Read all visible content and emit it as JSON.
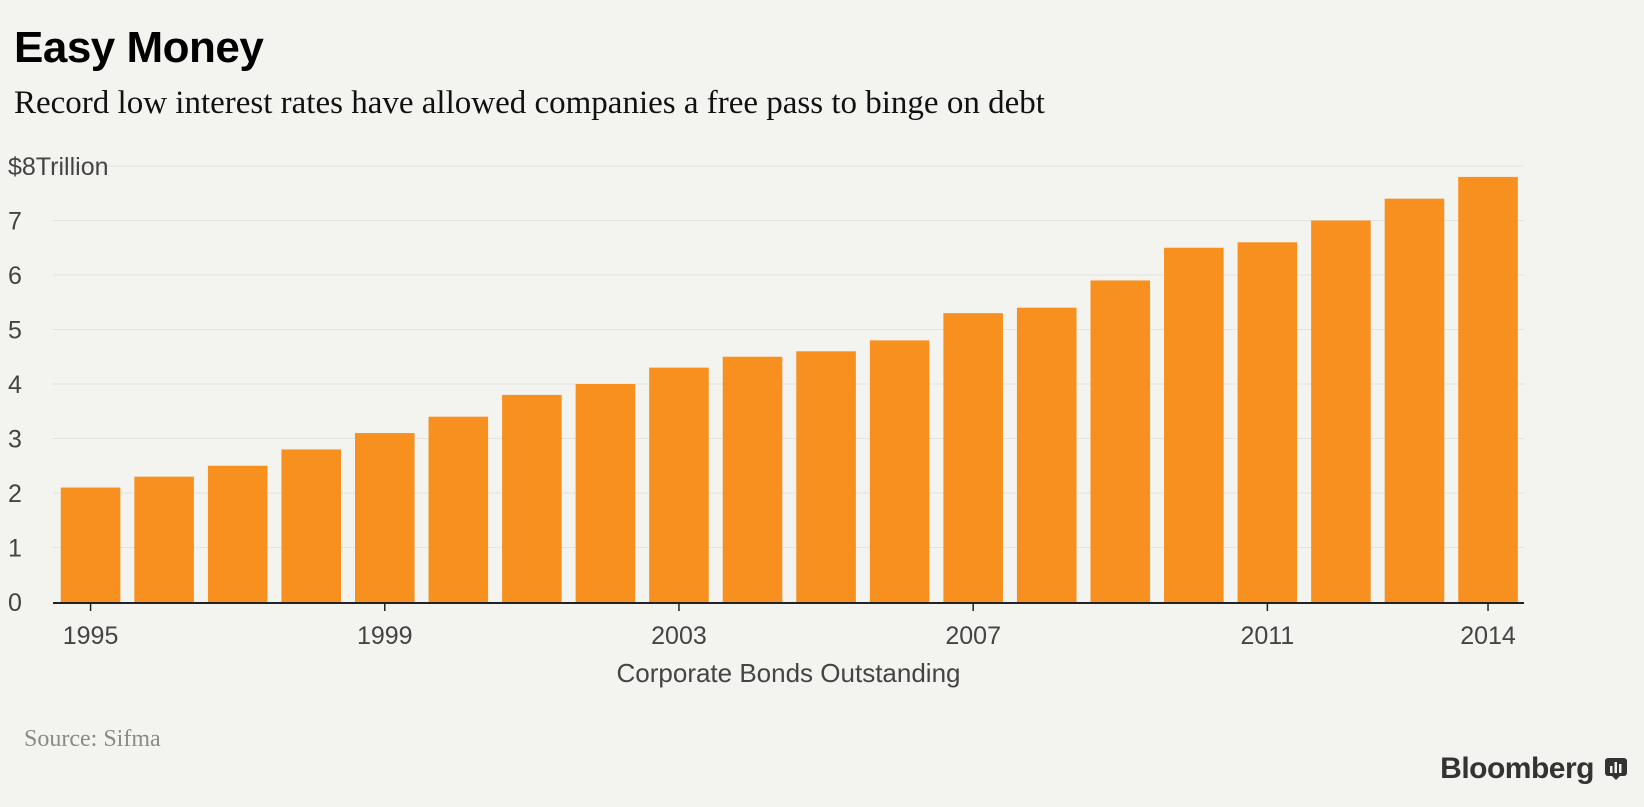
{
  "title": "Easy Money",
  "subtitle": "Record low interest rates have allowed companies a free pass to binge on debt",
  "source": "Source: Sifma",
  "brand": "Bloomberg",
  "colors": {
    "bar": "#f7901e",
    "grid": "#e2e2de",
    "axis": "#222222",
    "tick_text": "#444444",
    "background": "#f3f3ef"
  },
  "chart_data": {
    "type": "bar",
    "title": "Easy Money",
    "xlabel": "Corporate Bonds Outstanding",
    "ylabel": "",
    "y_unit_label": "$8Trillion",
    "ylim": [
      0,
      8
    ],
    "yticks": [
      0,
      1,
      2,
      3,
      4,
      5,
      6,
      7,
      8
    ],
    "ytick_labels": [
      "0",
      "1",
      "2",
      "3",
      "4",
      "5",
      "6",
      "7",
      "$8Trillion"
    ],
    "grid": true,
    "categories": [
      "1995",
      "1996",
      "1997",
      "1998",
      "1999",
      "2000",
      "2001",
      "2002",
      "2003",
      "2004",
      "2005",
      "2006",
      "2007",
      "2008",
      "2009",
      "2010",
      "2011",
      "2012",
      "2013",
      "2014"
    ],
    "xtick_labels": [
      "1995",
      "1999",
      "2003",
      "2007",
      "2011",
      "2014"
    ],
    "series": [
      {
        "name": "Corporate Bonds Outstanding",
        "values": [
          2.1,
          2.3,
          2.5,
          2.8,
          3.1,
          3.4,
          3.8,
          4.0,
          4.3,
          4.5,
          4.6,
          4.8,
          5.3,
          5.4,
          5.9,
          6.5,
          6.6,
          7.0,
          7.4,
          7.8
        ]
      }
    ]
  }
}
